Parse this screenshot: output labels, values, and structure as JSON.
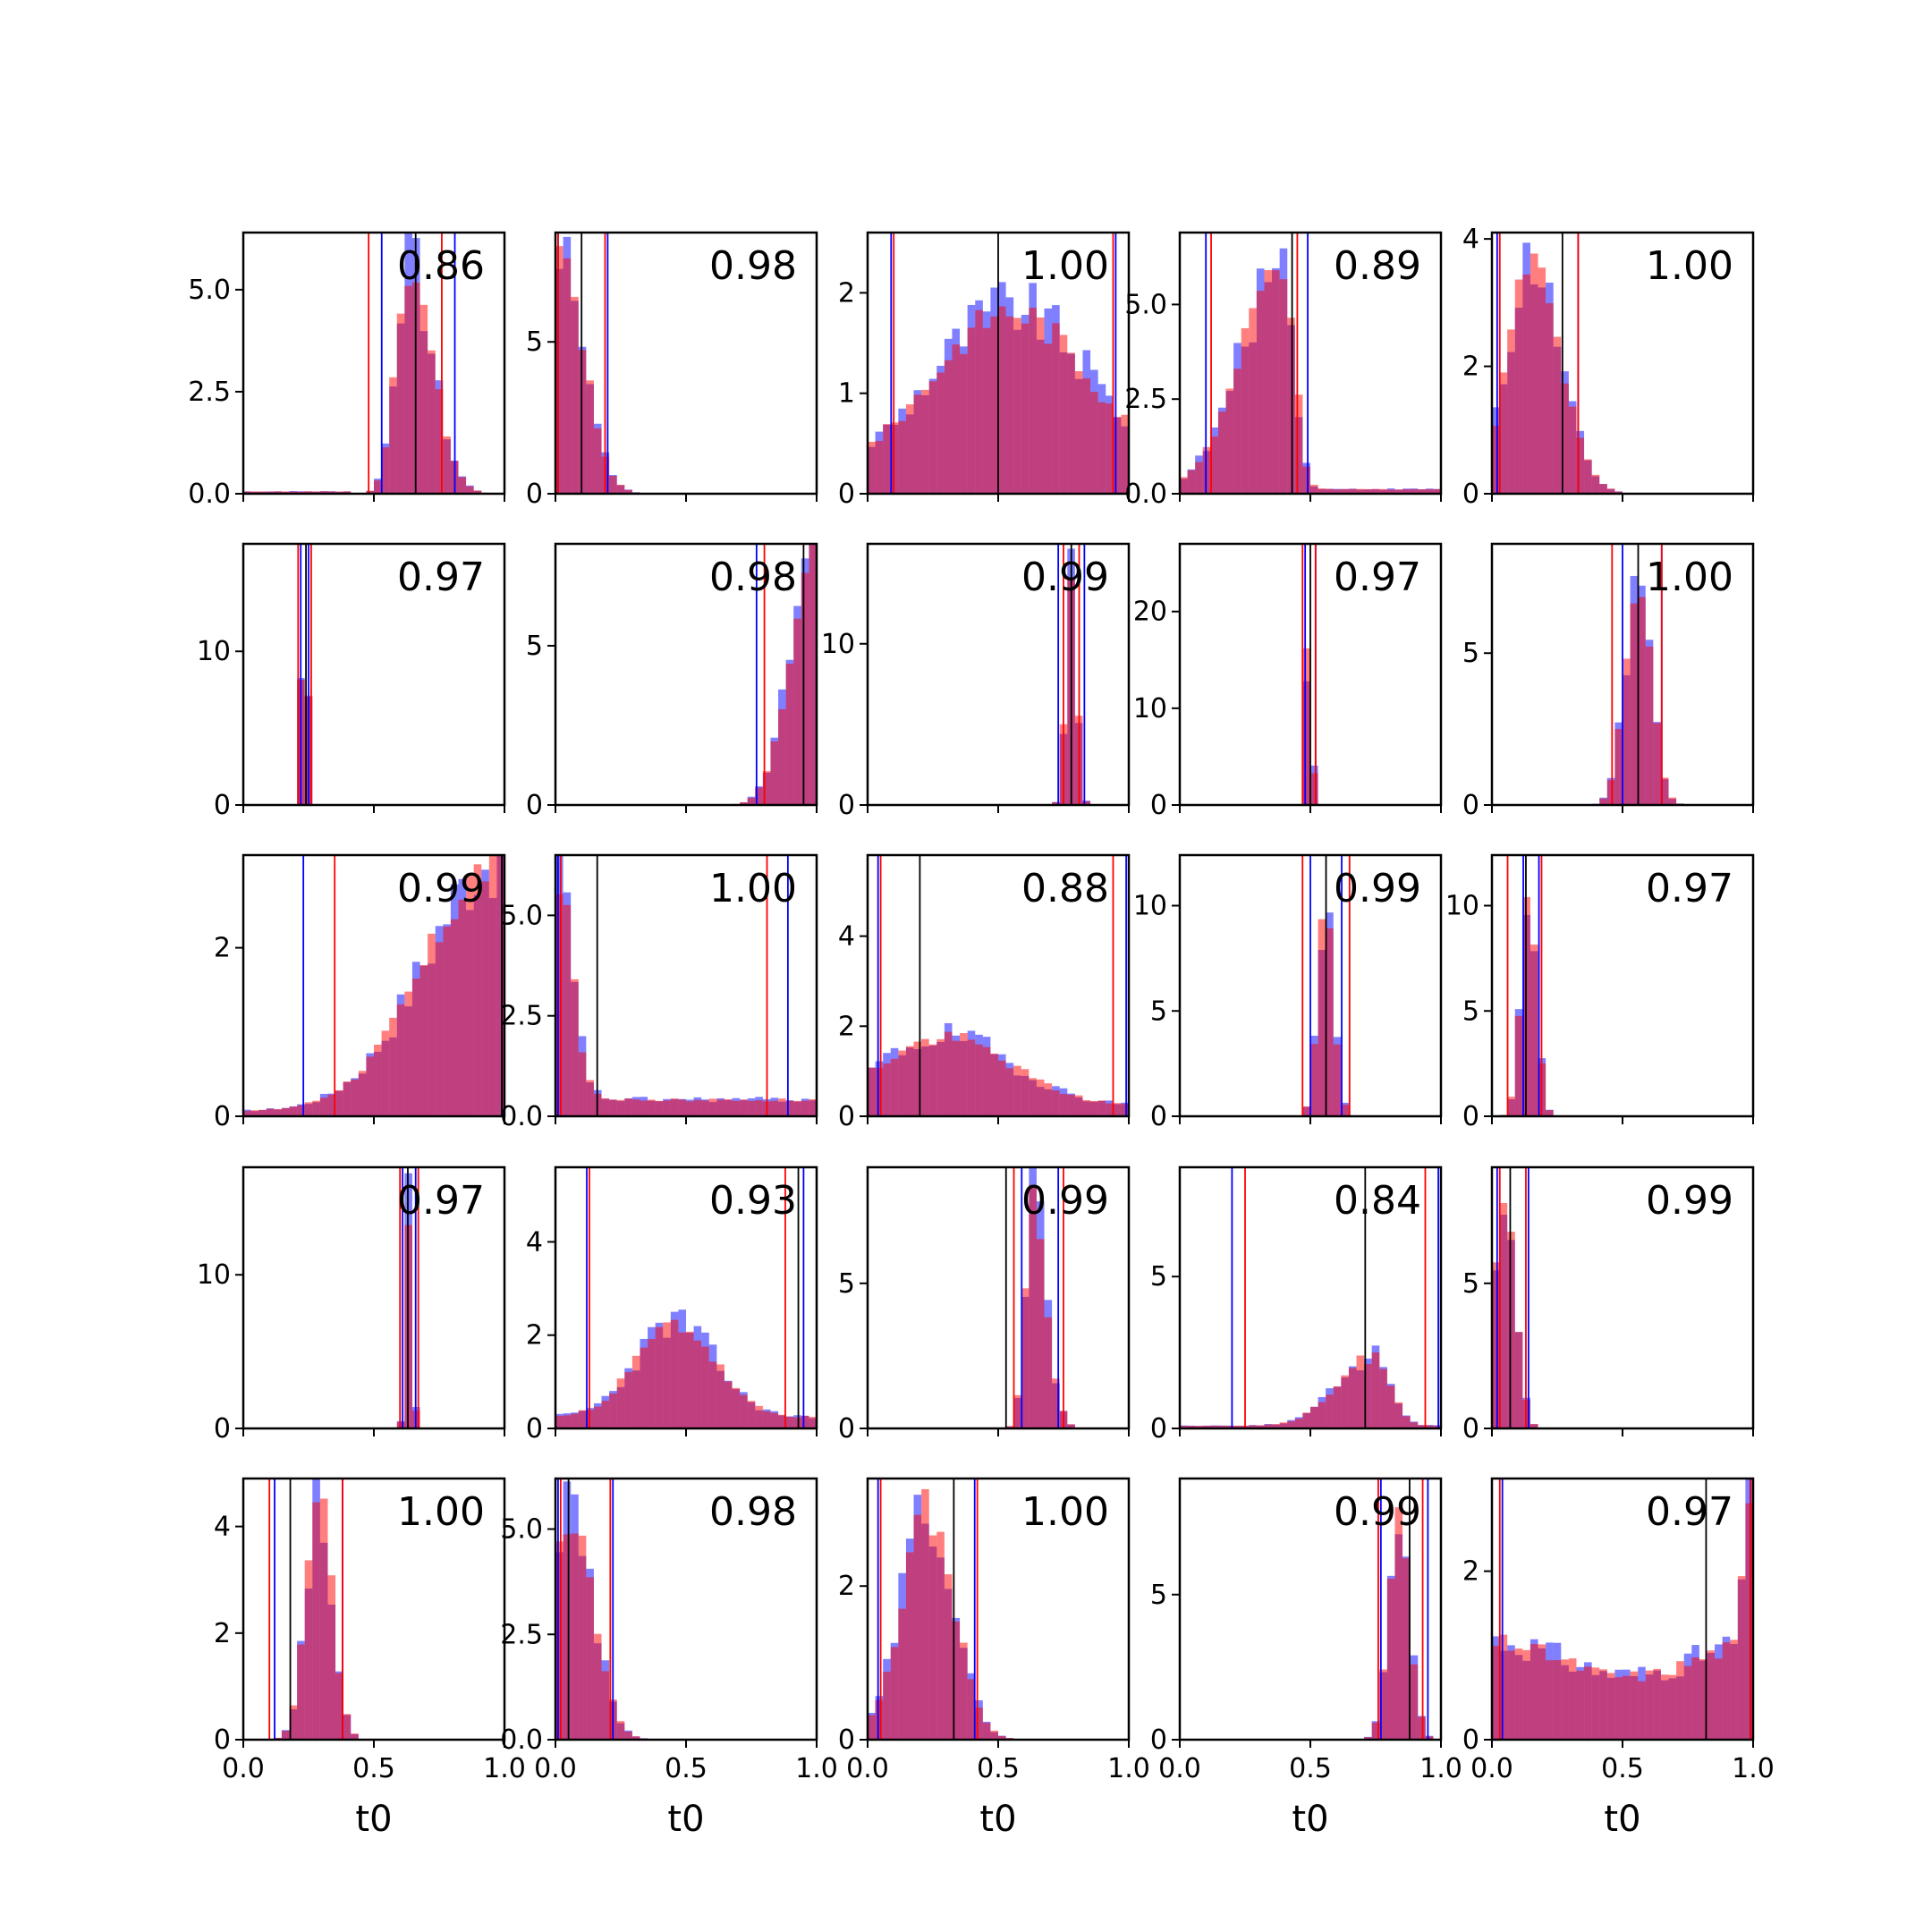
{
  "chart_data": {
    "type": "histogram-grid",
    "rows": 5,
    "cols": 5,
    "xlim": [
      0,
      1
    ],
    "xticks": [
      "0.0",
      "0.5",
      "1.0"
    ],
    "xlabel": "t0",
    "colors": {
      "blue": "#0000ff",
      "red": "#ff0000",
      "black": "#000000",
      "fill_alpha": 0.5
    },
    "panels": [
      {
        "label": "0.86",
        "ymax": 6.4,
        "yticks": [
          "0.0",
          "2.5",
          "5.0"
        ],
        "ytick_values": [
          0,
          2.5,
          5.0
        ],
        "blue_line": [
          0.53,
          0.81
        ],
        "red_line": [
          0.48,
          0.76
        ],
        "black_line": 0.66,
        "dist": {
          "peak": 0.63,
          "sigma": 0.07,
          "height": 5.6,
          "skew": 0.3,
          "floor": 0.05,
          "floor_until": 0.4
        }
      },
      {
        "label": "0.98",
        "ymax": 8.6,
        "yticks": [
          "0",
          "5"
        ],
        "ytick_values": [
          0,
          5
        ],
        "blue_line": [
          0.01,
          0.2
        ],
        "red_line": [
          0.01,
          0.19
        ],
        "black_line": 0.1,
        "dist": {
          "peak": 0.02,
          "sigma": 0.09,
          "height": 7.5,
          "skew": 0,
          "floor": 0,
          "floor_until": 0
        }
      },
      {
        "label": "1.00",
        "ymax": 2.6,
        "yticks": [
          "0",
          "1",
          "2"
        ],
        "ytick_values": [
          0,
          1,
          2
        ],
        "blue_line": [
          0.09,
          0.95
        ],
        "red_line": [
          0.1,
          0.94
        ],
        "black_line": 0.5,
        "dist": {
          "peak": 0.55,
          "sigma": 0.3,
          "height": 1.65,
          "skew": 0,
          "floor": 0.5,
          "floor_until": 1.0
        }
      },
      {
        "label": "0.89",
        "ymax": 6.9,
        "yticks": [
          "0.0",
          "2.5",
          "5.0"
        ],
        "ytick_values": [
          0,
          2.5,
          5.0
        ],
        "blue_line": [
          0.1,
          0.49
        ],
        "red_line": [
          0.12,
          0.45
        ],
        "black_line": 0.43,
        "dist": {
          "peak": 0.4,
          "sigma": 0.1,
          "height": 6.0,
          "skew": -0.6,
          "floor": 0.1,
          "floor_until": 1.0
        }
      },
      {
        "label": "1.00",
        "ymax": 4.1,
        "yticks": [
          "0",
          "2",
          "4"
        ],
        "ytick_values": [
          0,
          2,
          4
        ],
        "blue_line": [
          0.02,
          0.33
        ],
        "red_line": [
          0.03,
          0.33
        ],
        "black_line": 0.27,
        "dist": {
          "peak": 0.15,
          "sigma": 0.1,
          "height": 3.6,
          "skew": 0.1,
          "floor": 0,
          "floor_until": 0
        }
      },
      {
        "label": "0.97",
        "ymax": 17.0,
        "yticks": [
          "0",
          "10"
        ],
        "ytick_values": [
          0,
          10
        ],
        "blue_line": [
          0.22,
          0.25
        ],
        "red_line": [
          0.21,
          0.26
        ],
        "black_line": 0.24,
        "dist": {
          "peak": 0.235,
          "sigma": 0.012,
          "height": 16.0,
          "skew": 0,
          "floor": 0,
          "floor_until": 0
        }
      },
      {
        "label": "0.98",
        "ymax": 8.2,
        "yticks": [
          "0",
          "5"
        ],
        "ytick_values": [
          0,
          5
        ],
        "blue_line": [
          0.77,
          1.0
        ],
        "red_line": [
          0.8,
          1.0
        ],
        "black_line": 0.95,
        "dist": {
          "peak": 0.99,
          "sigma": 0.09,
          "height": 7.8,
          "skew": 0,
          "floor": 0,
          "floor_until": 0
        }
      },
      {
        "label": "0.99",
        "ymax": 16.2,
        "yticks": [
          "0",
          "10"
        ],
        "ytick_values": [
          0,
          10
        ],
        "blue_line": [
          0.73,
          0.83
        ],
        "red_line": [
          0.75,
          0.81
        ],
        "black_line": 0.78,
        "dist": {
          "peak": 0.78,
          "sigma": 0.02,
          "height": 15.5,
          "skew": 0,
          "floor": 0,
          "floor_until": 0
        }
      },
      {
        "label": "0.97",
        "ymax": 27.0,
        "yticks": [
          "0",
          "10",
          "20"
        ],
        "ytick_values": [
          0,
          10,
          20
        ],
        "blue_line": [
          0.48,
          0.52
        ],
        "red_line": [
          0.47,
          0.52
        ],
        "black_line": 0.5,
        "dist": {
          "peak": 0.495,
          "sigma": 0.01,
          "height": 24.0,
          "skew": 0,
          "floor": 0,
          "floor_until": 0
        }
      },
      {
        "label": "1.00",
        "ymax": 8.6,
        "yticks": [
          "0",
          "5"
        ],
        "ytick_values": [
          0,
          5
        ],
        "blue_line": [
          0.5,
          0.65
        ],
        "red_line": [
          0.46,
          0.65
        ],
        "black_line": 0.56,
        "dist": {
          "peak": 0.56,
          "sigma": 0.05,
          "height": 7.2,
          "skew": 0,
          "floor": 0,
          "floor_until": 0
        }
      },
      {
        "label": "0.99",
        "ymax": 3.1,
        "yticks": [
          "0",
          "2"
        ],
        "ytick_values": [
          0,
          2
        ],
        "blue_line": [
          0.23,
          0.99
        ],
        "red_line": [
          0.35,
          1.0
        ],
        "black_line": 0.99,
        "dist": {
          "peak": 0.98,
          "sigma": 0.28,
          "height": 2.95,
          "skew": 0,
          "floor": 0.1,
          "floor_until": 1.0
        }
      },
      {
        "label": "1.00",
        "ymax": 6.5,
        "yticks": [
          "0.0",
          "2.5",
          "5.0"
        ],
        "ytick_values": [
          0,
          2.5,
          5.0
        ],
        "blue_line": [
          0.01,
          0.89
        ],
        "red_line": [
          0.02,
          0.81
        ],
        "black_line": 0.16,
        "dist": {
          "peak": 0.0,
          "sigma": 0.06,
          "height": 5.8,
          "skew": 0,
          "floor": 0.35,
          "floor_until": 1.0
        }
      },
      {
        "label": "0.88",
        "ymax": 5.8,
        "yticks": [
          "0",
          "2",
          "4"
        ],
        "ytick_values": [
          0,
          2,
          4
        ],
        "blue_line": [
          0.04,
          0.99
        ],
        "red_line": [
          0.05,
          0.94
        ],
        "black_line": 0.2,
        "dist": {
          "peak": 0.3,
          "sigma": 0.25,
          "height": 1.5,
          "skew": 0,
          "floor": 0.8,
          "floor_until": 1.0
        }
      },
      {
        "label": "0.99",
        "ymax": 12.4,
        "yticks": [
          "0",
          "5",
          "10"
        ],
        "ytick_values": [
          0,
          5,
          10
        ],
        "blue_line": [
          0.5,
          0.62
        ],
        "red_line": [
          0.47,
          0.65
        ],
        "black_line": 0.56,
        "dist": {
          "peak": 0.56,
          "sigma": 0.03,
          "height": 10.5,
          "skew": 0,
          "floor": 0,
          "floor_until": 0
        }
      },
      {
        "label": "0.97",
        "ymax": 12.4,
        "yticks": [
          "0",
          "5",
          "10"
        ],
        "ytick_values": [
          0,
          5,
          10
        ],
        "blue_line": [
          0.12,
          0.18
        ],
        "red_line": [
          0.06,
          0.19
        ],
        "black_line": 0.13,
        "dist": {
          "peak": 0.14,
          "sigma": 0.03,
          "height": 10.0,
          "skew": 0,
          "floor": 0,
          "floor_until": 0
        }
      },
      {
        "label": "0.97",
        "ymax": 17.0,
        "yticks": [
          "0",
          "10"
        ],
        "ytick_values": [
          0,
          10
        ],
        "blue_line": [
          0.61,
          0.66
        ],
        "red_line": [
          0.6,
          0.67
        ],
        "black_line": 0.63,
        "dist": {
          "peak": 0.635,
          "sigma": 0.012,
          "height": 15.0,
          "skew": 0,
          "floor": 0,
          "floor_until": 0
        }
      },
      {
        "label": "0.93",
        "ymax": 5.6,
        "yticks": [
          "0",
          "2",
          "4"
        ],
        "ytick_values": [
          0,
          2,
          4
        ],
        "blue_line": [
          0.12,
          0.95
        ],
        "red_line": [
          0.13,
          0.88
        ],
        "black_line": 0.93,
        "dist": {
          "peak": 0.46,
          "sigma": 0.15,
          "height": 2.0,
          "skew": 0,
          "floor": 0.6,
          "floor_until": 1.0
        }
      },
      {
        "label": "0.99",
        "ymax": 9.0,
        "yticks": [
          "0",
          "5"
        ],
        "ytick_values": [
          0,
          5
        ],
        "blue_line": [
          0.59,
          0.73
        ],
        "red_line": [
          0.56,
          0.75
        ],
        "black_line": 0.53,
        "dist": {
          "peak": 0.63,
          "sigma": 0.04,
          "height": 8.0,
          "skew": 0.3,
          "floor": 0,
          "floor_until": 0
        }
      },
      {
        "label": "0.84",
        "ymax": 8.6,
        "yticks": [
          "0",
          "5"
        ],
        "ytick_values": [
          0,
          5
        ],
        "blue_line": [
          0.2,
          0.99
        ],
        "red_line": [
          0.25,
          0.94
        ],
        "black_line": 0.71,
        "dist": {
          "peak": 0.75,
          "sigma": 0.1,
          "height": 2.3,
          "skew": -0.4,
          "floor": 0.2,
          "floor_until": 1.0
        }
      },
      {
        "label": "0.99",
        "ymax": 9.0,
        "yticks": [
          "0",
          "5"
        ],
        "ytick_values": [
          0,
          5
        ],
        "blue_line": [
          0.02,
          0.14
        ],
        "red_line": [
          0.03,
          0.13
        ],
        "black_line": 0.07,
        "dist": {
          "peak": 0.05,
          "sigma": 0.04,
          "height": 8.0,
          "skew": 0,
          "floor": 0,
          "floor_until": 0
        }
      },
      {
        "label": "1.00",
        "ymax": 4.9,
        "yticks": [
          "0",
          "2",
          "4"
        ],
        "ytick_values": [
          0,
          2,
          4
        ],
        "blue_line": [
          0.12,
          0.38
        ],
        "red_line": [
          0.1,
          0.38
        ],
        "black_line": 0.18,
        "dist": {
          "peak": 0.29,
          "sigma": 0.05,
          "height": 4.5,
          "skew": 0,
          "floor": 0,
          "floor_until": 0
        }
      },
      {
        "label": "0.98",
        "ymax": 6.2,
        "yticks": [
          "0.0",
          "2.5",
          "5.0"
        ],
        "ytick_values": [
          0,
          2.5,
          5.0
        ],
        "blue_line": [
          0.01,
          0.22
        ],
        "red_line": [
          0.02,
          0.21
        ],
        "black_line": 0.05,
        "dist": {
          "peak": 0.05,
          "sigma": 0.09,
          "height": 5.4,
          "skew": 0,
          "floor": 0,
          "floor_until": 0
        }
      },
      {
        "label": "1.00",
        "ymax": 3.4,
        "yticks": [
          "0",
          "2"
        ],
        "ytick_values": [
          0,
          2
        ],
        "blue_line": [
          0.04,
          0.41
        ],
        "red_line": [
          0.05,
          0.42
        ],
        "black_line": 0.33,
        "dist": {
          "peak": 0.23,
          "sigma": 0.1,
          "height": 3.0,
          "skew": 0,
          "floor": 0,
          "floor_until": 0
        }
      },
      {
        "label": "0.99",
        "ymax": 9.0,
        "yticks": [
          "0",
          "5"
        ],
        "ytick_values": [
          0,
          5
        ],
        "blue_line": [
          0.77,
          0.95
        ],
        "red_line": [
          0.76,
          0.93
        ],
        "black_line": 0.88,
        "dist": {
          "peak": 0.84,
          "sigma": 0.04,
          "height": 7.5,
          "skew": 0,
          "floor": 0,
          "floor_until": 0
        }
      },
      {
        "label": "0.97",
        "ymax": 3.1,
        "yticks": [
          "0",
          "2"
        ],
        "ytick_values": [
          0,
          2
        ],
        "blue_line": [
          0.04,
          0.99
        ],
        "red_line": [
          0.03,
          0.99
        ],
        "black_line": 0.82,
        "dist": {
          "peak": 1.0,
          "sigma": 0.03,
          "height": 2.9,
          "skew": 0,
          "floor": 1.0,
          "floor_until": 1.0,
          "u_shape": true
        }
      }
    ]
  }
}
